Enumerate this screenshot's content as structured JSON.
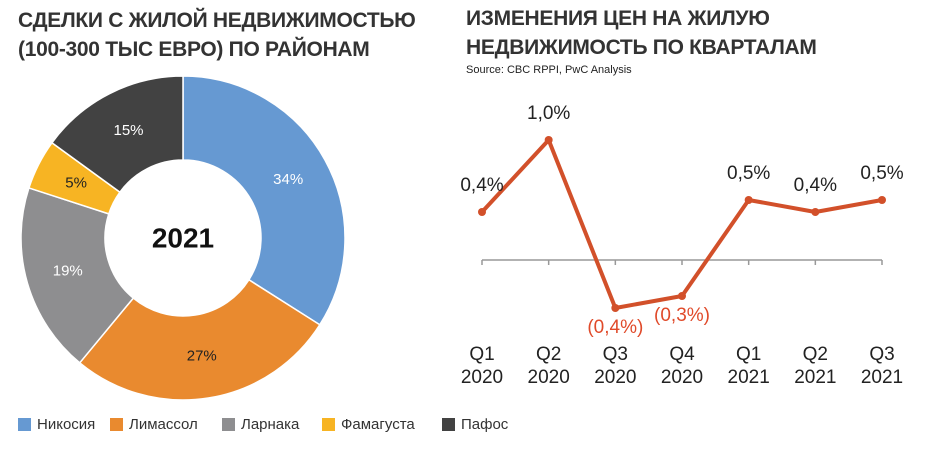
{
  "chart_data": [
    {
      "type": "pie",
      "title": "СДЕЛКИ С ЖИЛОЙ НЕДВИЖИМОСТЬЮ\n(100-300 ТЫС ЕВРО) ПО РАЙОНАМ",
      "center_label": "2021",
      "categories": [
        "Никосия",
        "Лимассол",
        "Ларнака",
        "Фамагуста",
        "Пафос"
      ],
      "values": [
        34,
        27,
        19,
        5,
        15
      ],
      "value_labels": [
        "34%",
        "27%",
        "19%",
        "5%",
        "15%"
      ],
      "colors": [
        "#6699d2",
        "#e98a2f",
        "#8e8e90",
        "#f7b423",
        "#424242"
      ],
      "label_colors": [
        "#ffffff",
        "#222222",
        "#ffffff",
        "#222222",
        "#ffffff"
      ]
    },
    {
      "type": "line",
      "title": "ИЗМЕНЕНИЯ ЦЕН НА ЖИЛУЮ\nНЕДВИЖИМОСТЬ ПО КВАРТАЛАМ",
      "subtitle": "Source: CBC RPPI, PwC Analysis",
      "categories": [
        "Q1\n2020",
        "Q2\n2020",
        "Q3\n2020",
        "Q4\n2020",
        "Q1\n2021",
        "Q2\n2021",
        "Q3\n2021"
      ],
      "values": [
        0.4,
        1.0,
        -0.4,
        -0.3,
        0.5,
        0.4,
        0.5
      ],
      "value_labels": [
        "0,4%",
        "1,0%",
        "(0,4%)",
        "(0,3%)",
        "0,5%",
        "0,4%",
        "0,5%"
      ],
      "color": "#d2502a",
      "negative_label_color": "#e04a2a",
      "ylim": [
        -0.8,
        1.2
      ]
    }
  ]
}
